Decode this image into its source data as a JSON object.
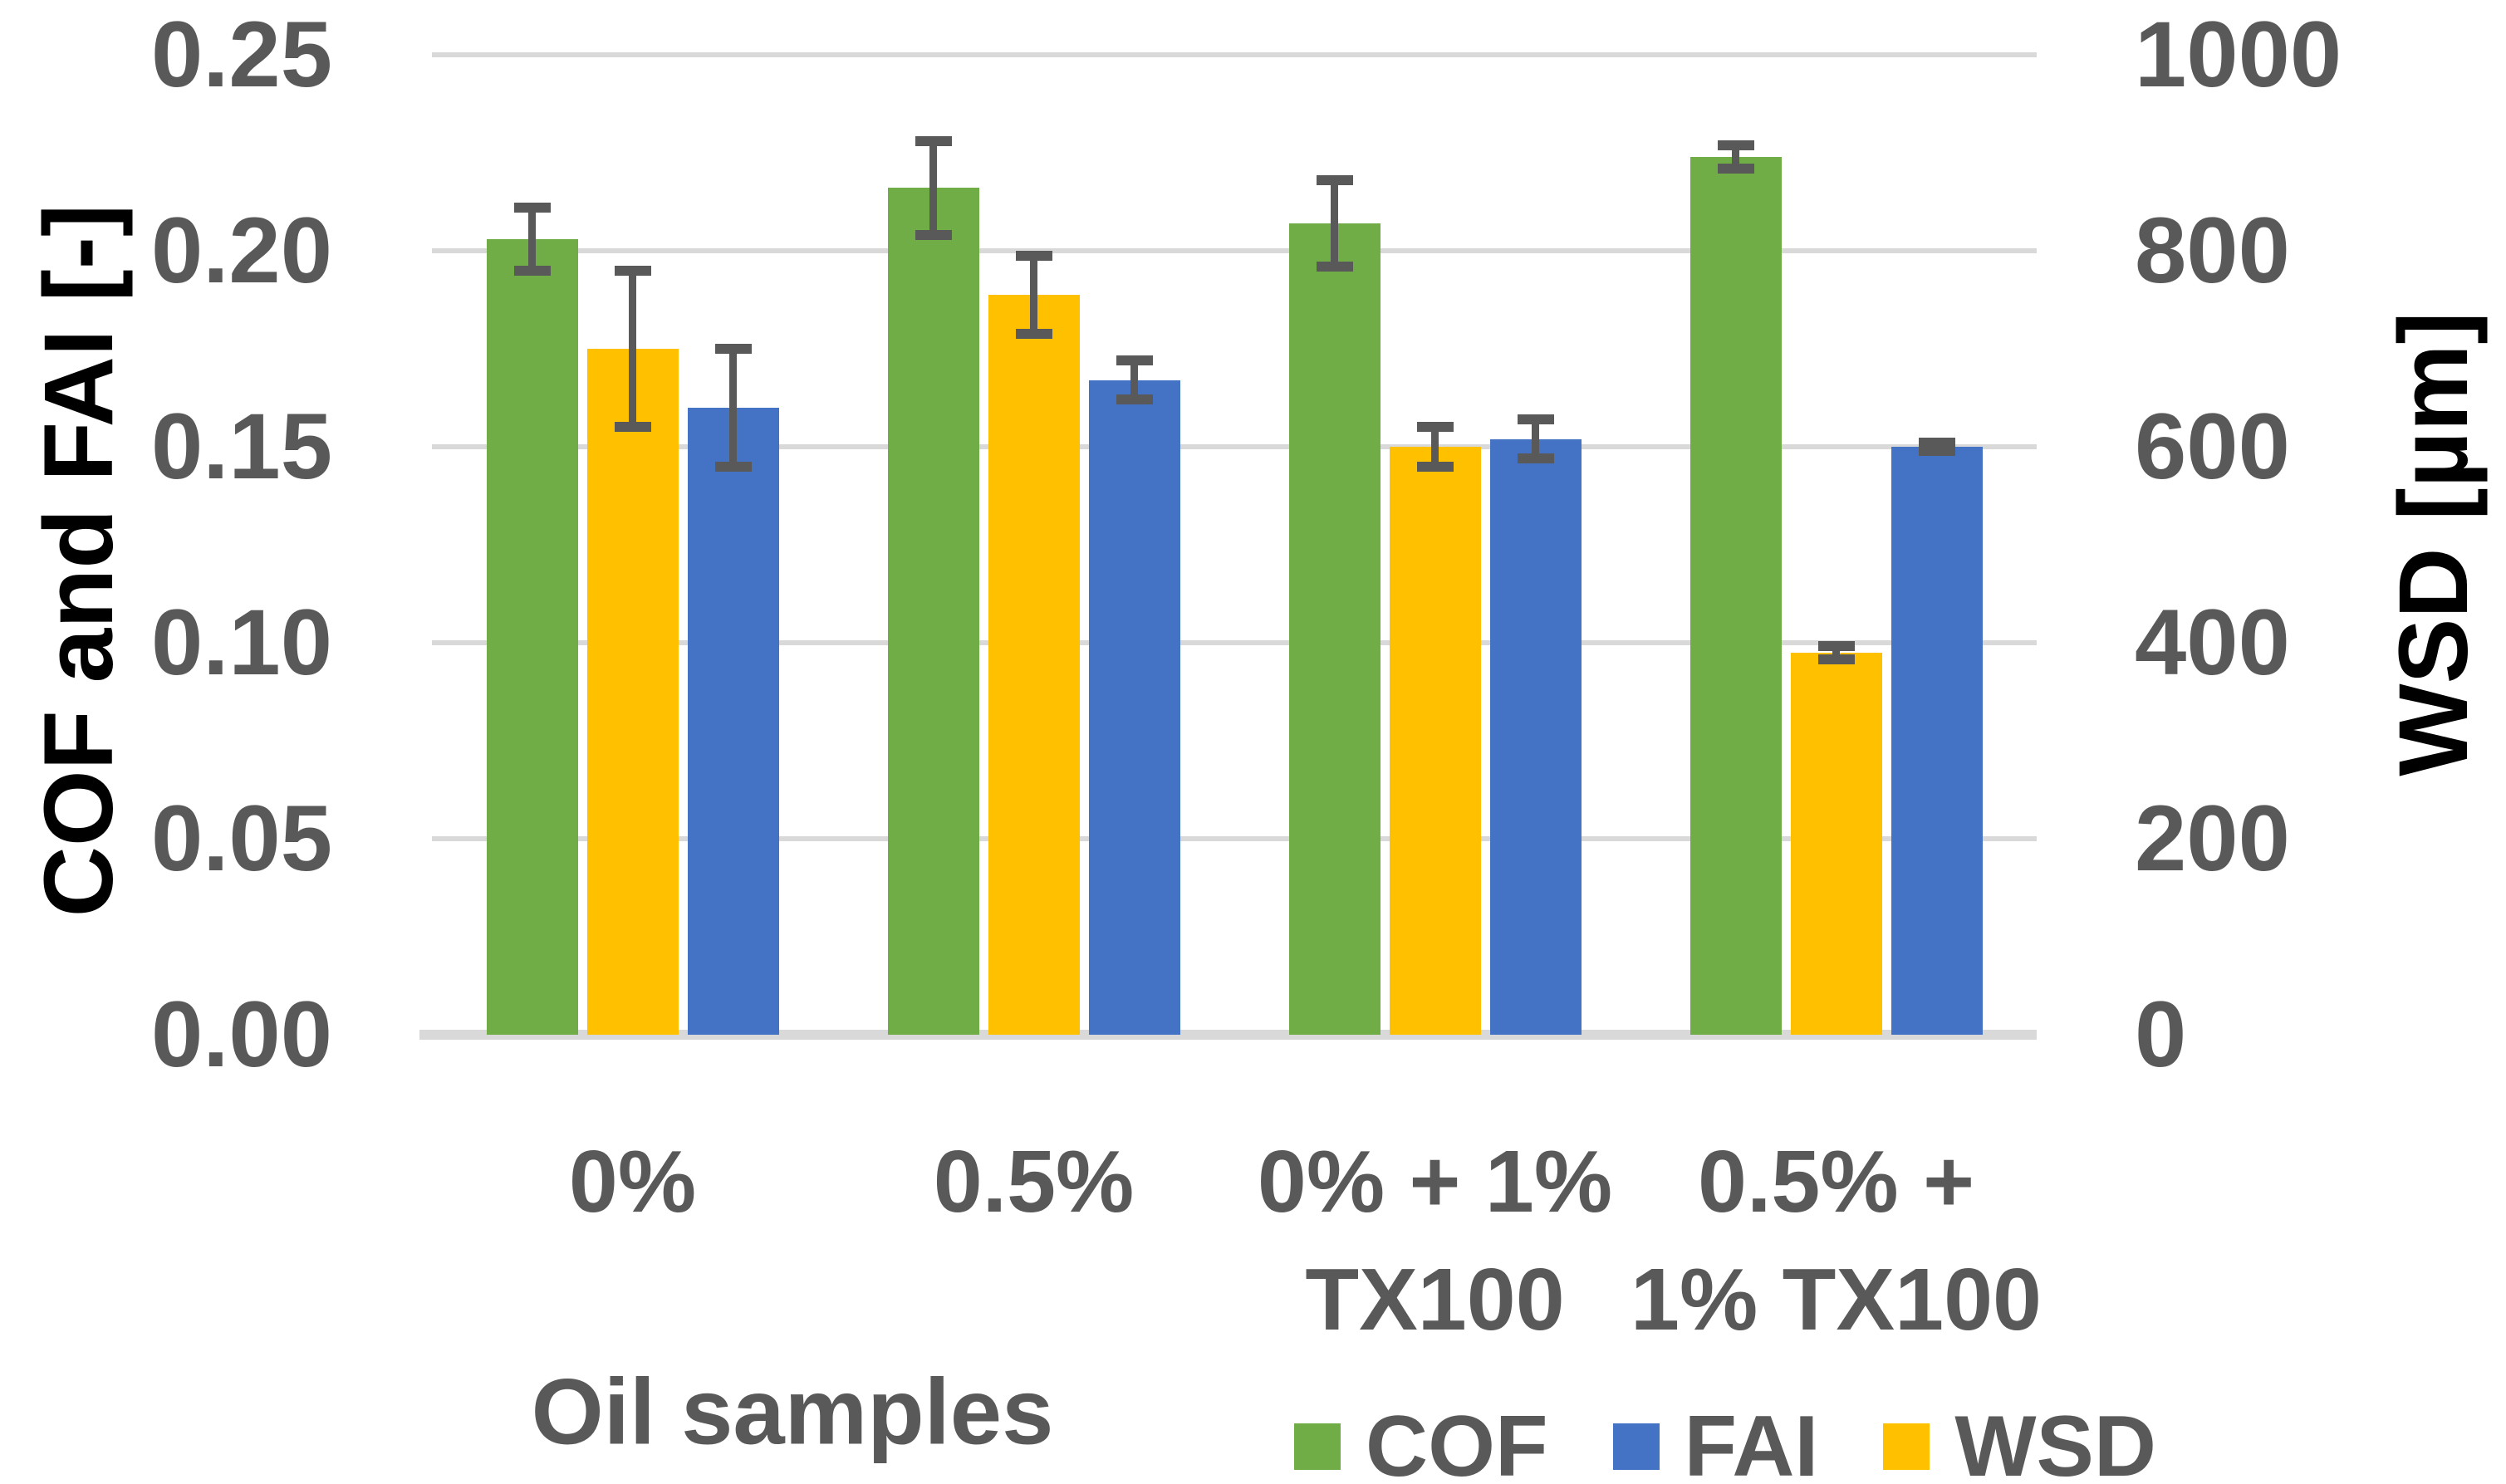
{
  "chart_data": {
    "type": "bar",
    "title": "",
    "categories": [
      "0%",
      "0.5%",
      "0% + 1% TX100",
      "0.5% + 1% TX100"
    ],
    "category_label_lines": [
      [
        "0%"
      ],
      [
        "0.5%"
      ],
      [
        "0% + 1%",
        "TX100"
      ],
      [
        "0.5% +",
        "1% TX100"
      ]
    ],
    "series": [
      {
        "name": "COF",
        "axis": "left",
        "color": "#70AD47",
        "values": [
          0.203,
          0.216,
          0.207,
          0.224
        ],
        "errors": [
          0.008,
          0.012,
          0.011,
          0.003
        ]
      },
      {
        "name": "WSD",
        "axis": "right",
        "color": "#FFC000",
        "values": [
          700,
          755,
          600,
          390
        ],
        "errors": [
          80,
          40,
          20,
          7
        ]
      },
      {
        "name": "FAI",
        "axis": "left",
        "color": "#4472C4",
        "values": [
          0.16,
          0.167,
          0.152,
          0.15
        ],
        "errors": [
          0.015,
          0.005,
          0.005,
          0.001
        ]
      }
    ],
    "left_axis": {
      "title": "COF and FAI [-]",
      "min": 0,
      "max": 0.25,
      "step": 0.05,
      "ticks": [
        "0.00",
        "0.05",
        "0.10",
        "0.15",
        "0.20",
        "0.25"
      ]
    },
    "right_axis": {
      "title": "WSD [µm]",
      "min": 0,
      "max": 1000,
      "step": 200,
      "ticks": [
        "0",
        "200",
        "400",
        "600",
        "800",
        "1000"
      ]
    },
    "x_axis": {
      "title": "Oil samples"
    },
    "legend": [
      {
        "label": "COF",
        "color": "#70AD47"
      },
      {
        "label": "FAI",
        "color": "#4472C4"
      },
      {
        "label": "WSD",
        "color": "#FFC000"
      }
    ],
    "style": {
      "grid_on": true,
      "legend_position": "bottom",
      "grid_color": "#D9D9D9",
      "error_bar_color": "#595959",
      "tick_text_color": "#595959",
      "axis_title_color": "#000000"
    }
  }
}
